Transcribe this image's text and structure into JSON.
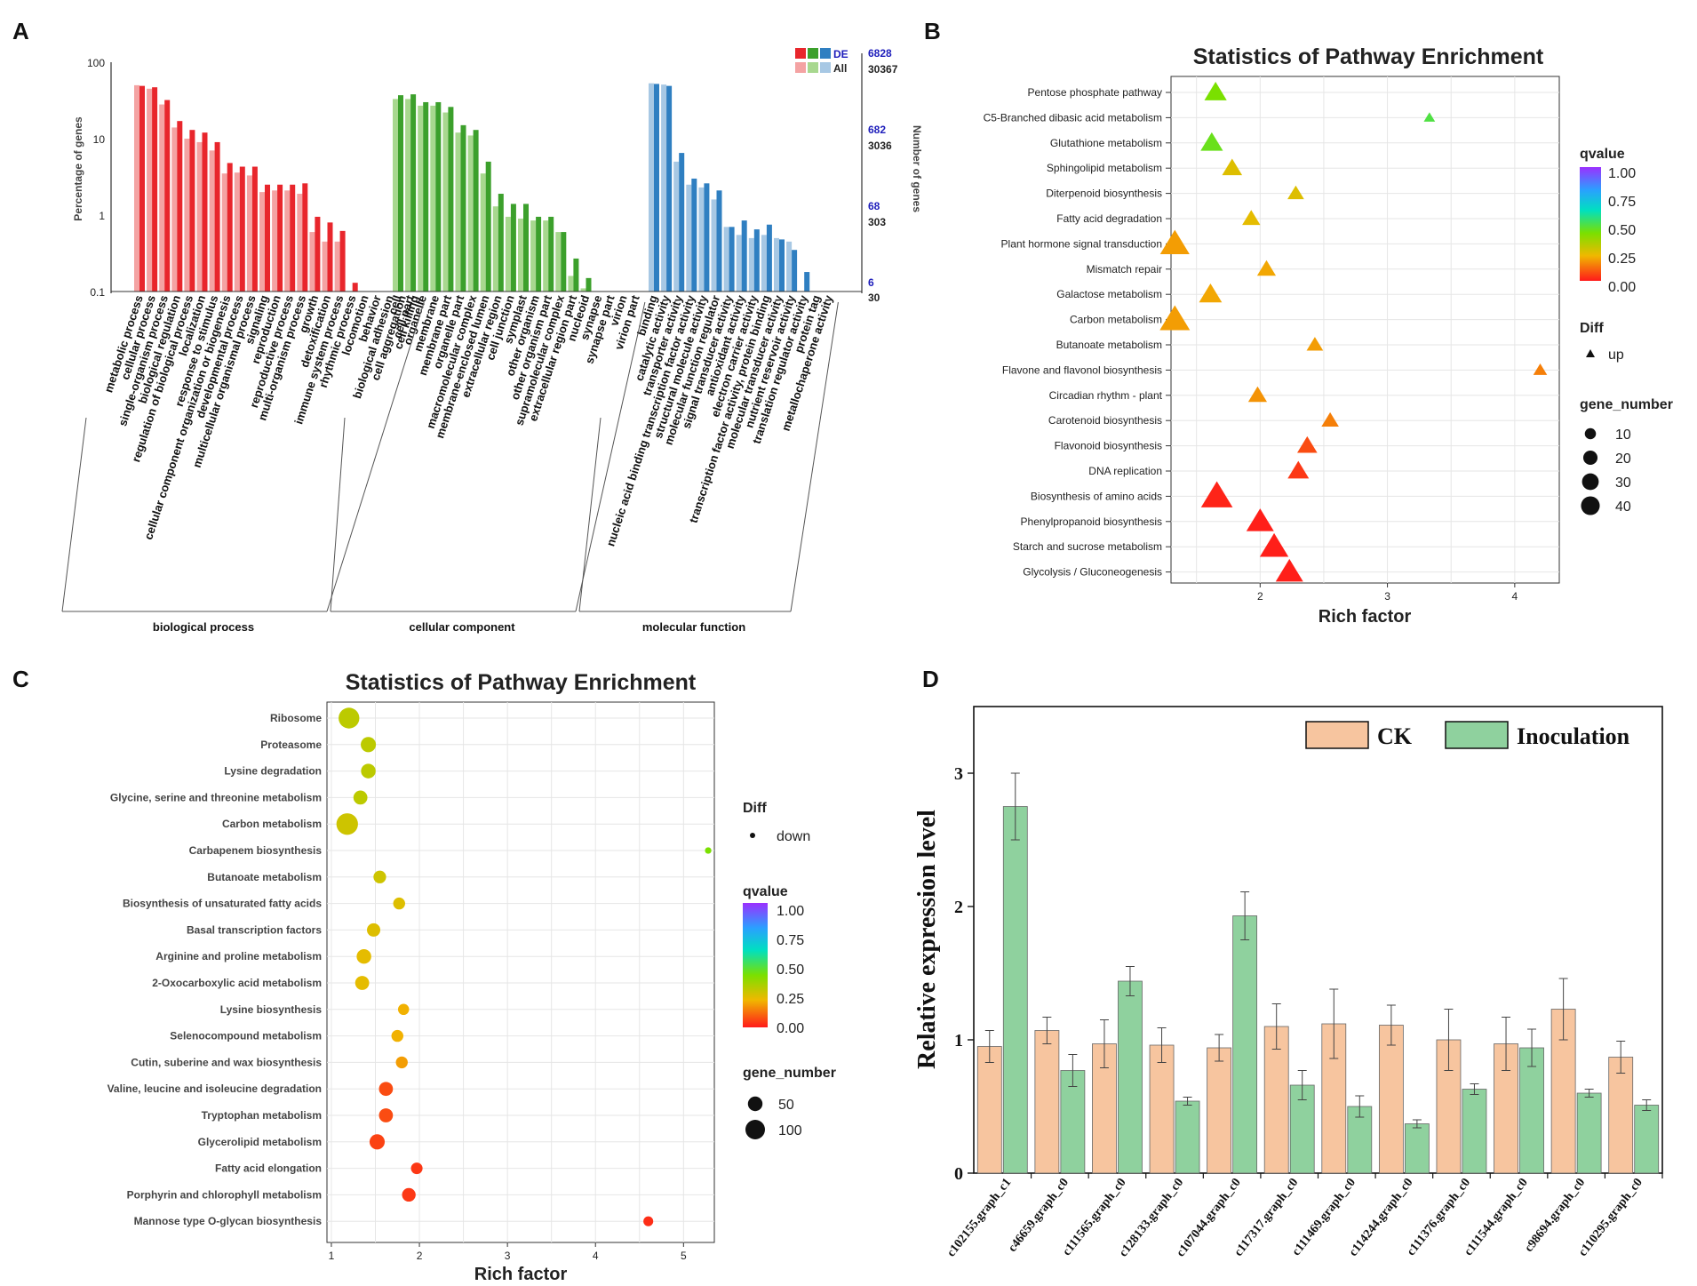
{
  "panels": {
    "a": "A",
    "b": "B",
    "c": "C",
    "d": "D"
  },
  "colors": {
    "bp": "#e8262c",
    "bp_all": "#f4a3a3",
    "cc": "#3ca02c",
    "cc_all": "#a8d88f",
    "mf": "#2f7fc1",
    "mf_all": "#a7c8e4",
    "ck": "#f7c59f",
    "inoc": "#8fd19e"
  },
  "chart_data": [
    {
      "type": "bar",
      "panel": "A",
      "ylabel": "Percentage of genes",
      "y2label": "Number of genes",
      "yscale": "log",
      "ylim": [
        0.1,
        100
      ],
      "yticks": [
        "100",
        "10",
        "1",
        "0.1"
      ],
      "right_axis": {
        "de_ticks": [
          "6828",
          "682",
          "68",
          "6"
        ],
        "all_ticks": [
          "30367",
          "3036",
          "303",
          "30"
        ]
      },
      "legend": {
        "de": "DE",
        "all": "All"
      },
      "groups": [
        {
          "name": "biological process",
          "categories": [
            "metabolic process",
            "cellular process",
            "single-organism process",
            "biological regulation",
            "regulation of biological process",
            "localization",
            "response to stimulus",
            "cellular component organization or biogenesis",
            "developmental process",
            "multicellular organismal process",
            "signaling",
            "reproduction",
            "reproductive process",
            "multi-organism process",
            "growth",
            "detoxification",
            "immune system process",
            "rhythmic process",
            "locomotion",
            "behavior",
            "biological adhesion",
            "cell aggregation",
            "cell killing"
          ],
          "all": [
            50,
            45,
            28,
            14,
            10,
            9,
            7,
            3.5,
            3.6,
            3.3,
            2.0,
            2.1,
            2.1,
            1.9,
            0.6,
            0.45,
            0.45,
            0.0,
            0.0,
            0.0,
            0.0,
            0.0,
            0.0
          ],
          "de": [
            49,
            47,
            32,
            17,
            13,
            12,
            9,
            4.8,
            4.3,
            4.3,
            2.5,
            2.5,
            2.5,
            2.6,
            0.95,
            0.8,
            0.62,
            0.13,
            0.0,
            0.0,
            0.0,
            0.0,
            0.0
          ]
        },
        {
          "name": "cellular component",
          "categories": [
            "cell",
            "cell part",
            "organelle",
            "membrane",
            "membrane part",
            "organelle part",
            "macromolecular complex",
            "membrane-enclosed lumen",
            "extracellular region",
            "cell junction",
            "symplast",
            "other organism",
            "other organism part",
            "supramolecular complex",
            "extracellular region part",
            "nucleoid",
            "synapse",
            "synapse part",
            "virion",
            "virion part"
          ],
          "all": [
            33,
            33,
            27,
            27,
            22,
            12,
            11,
            3.5,
            1.3,
            0.95,
            0.9,
            0.85,
            0.85,
            0.6,
            0.16,
            0.11,
            0.0,
            0.0,
            0.0,
            0.0
          ],
          "de": [
            37,
            38,
            30,
            30,
            26,
            15,
            13,
            5,
            1.9,
            1.4,
            1.4,
            0.95,
            0.95,
            0.6,
            0.27,
            0.15,
            0.0,
            0.0,
            0.0,
            0.0
          ]
        },
        {
          "name": "molecular function",
          "categories": [
            "binding",
            "catalytic activity",
            "transporter activity",
            "nucleic acid binding transcription factor activity",
            "structural molecule activity",
            "molecular function regulator",
            "signal transducer activity",
            "antioxidant activity",
            "electron carrier activity",
            "transcription factor activity, protein binding",
            "molecular transducer activity",
            "nutrient reservoir activity",
            "translation regulator activity",
            "protein tag",
            "metallochaperone activity"
          ],
          "all": [
            53,
            51,
            5,
            2.5,
            2.3,
            1.6,
            0.7,
            0.55,
            0.5,
            0.55,
            0.5,
            0.45,
            0.0,
            0.0,
            0.0
          ],
          "de": [
            52,
            49,
            6.5,
            3.0,
            2.6,
            2.1,
            0.7,
            0.85,
            0.65,
            0.75,
            0.48,
            0.35,
            0.18,
            0.0,
            0.0
          ]
        }
      ]
    },
    {
      "type": "scatter",
      "panel": "B",
      "title": "Statistics of Pathway Enrichment",
      "xlabel": "Rich factor",
      "xlim": [
        1.3,
        4.35
      ],
      "xticks": [
        2,
        3,
        4
      ],
      "marker": "triangle",
      "pathways": [
        "Pentose phosphate pathway",
        "C5-Branched dibasic acid metabolism",
        "Glutathione metabolism",
        "Sphingolipid metabolism",
        "Diterpenoid biosynthesis",
        "Fatty acid degradation",
        "Plant hormone signal transduction",
        "Mismatch repair",
        "Galactose metabolism",
        "Carbon metabolism",
        "Butanoate metabolism",
        "Flavone and flavonol biosynthesis",
        "Circadian rhythm - plant",
        "Carotenoid biosynthesis",
        "Flavonoid biosynthesis",
        "DNA replication",
        "Biosynthesis of amino acids",
        "Phenylpropanoid biosynthesis",
        "Starch and sucrose metabolism",
        "Glycolysis / Gluconeogenesis"
      ],
      "rich_factor": [
        1.65,
        3.33,
        1.62,
        1.78,
        2.28,
        1.93,
        1.33,
        2.05,
        1.61,
        1.33,
        2.43,
        4.2,
        1.98,
        2.55,
        2.37,
        2.3,
        1.66,
        2.0,
        2.11,
        2.23
      ],
      "gene_number": [
        16,
        2,
        16,
        12,
        7,
        9,
        32,
        10,
        17,
        34,
        7,
        4,
        10,
        8,
        12,
        14,
        38,
        27,
        30,
        27
      ],
      "qvalue": [
        0.3,
        0.35,
        0.32,
        0.18,
        0.18,
        0.17,
        0.13,
        0.14,
        0.14,
        0.13,
        0.13,
        0.1,
        0.12,
        0.1,
        0.05,
        0.03,
        0.01,
        0.005,
        0.005,
        0.005
      ],
      "legend": {
        "qvalue_title": "qvalue",
        "qvalue_ticks": [
          "1.00",
          "0.75",
          "0.50",
          "0.25",
          "0.00"
        ],
        "diff_title": "Diff",
        "diff_label": "up",
        "size_title": "gene_number",
        "size_ticks": [
          10,
          20,
          30,
          40
        ]
      }
    },
    {
      "type": "scatter",
      "panel": "C",
      "title": "Statistics of Pathway Enrichment",
      "xlabel": "Rich factor",
      "xlim": [
        0.95,
        5.35
      ],
      "xticks": [
        1,
        2,
        3,
        4,
        5
      ],
      "marker": "circle",
      "pathways": [
        "Ribosome",
        "Proteasome",
        "Lysine degradation",
        "Glycine, serine and threonine metabolism",
        "Carbon metabolism",
        "Carbapenem biosynthesis",
        "Butanoate metabolism",
        "Biosynthesis of unsaturated fatty acids",
        "Basal transcription factors",
        "Arginine and proline metabolism",
        "2-Oxocarboxylic acid metabolism",
        "Lysine biosynthesis",
        "Selenocompound metabolism",
        "Cutin, suberine and wax biosynthesis",
        "Valine, leucine and isoleucine degradation",
        "Tryptophan metabolism",
        "Glycerolipid metabolism",
        "Fatty acid elongation",
        "Porphyrin and chlorophyll metabolism",
        "Mannose type O-glycan biosynthesis"
      ],
      "rich_factor": [
        1.2,
        1.42,
        1.42,
        1.33,
        1.18,
        5.28,
        1.55,
        1.77,
        1.48,
        1.37,
        1.35,
        1.82,
        1.75,
        1.8,
        1.62,
        1.62,
        1.52,
        1.97,
        1.88,
        4.6
      ],
      "gene_number": [
        115,
        55,
        50,
        45,
        125,
        5,
        35,
        30,
        40,
        50,
        45,
        25,
        30,
        30,
        45,
        45,
        55,
        28,
        42,
        18
      ],
      "qvalue": [
        0.22,
        0.22,
        0.22,
        0.22,
        0.2,
        0.3,
        0.2,
        0.18,
        0.18,
        0.17,
        0.17,
        0.15,
        0.15,
        0.13,
        0.05,
        0.05,
        0.04,
        0.03,
        0.03,
        0.02
      ],
      "legend": {
        "diff_title": "Diff",
        "diff_label": "down",
        "qvalue_title": "qvalue",
        "qvalue_ticks": [
          "1.00",
          "0.75",
          "0.50",
          "0.25",
          "0.00"
        ],
        "size_title": "gene_number",
        "size_ticks": [
          50,
          100
        ]
      }
    },
    {
      "type": "bar",
      "panel": "D",
      "ylabel": "Relative expression level",
      "ylim": [
        0,
        3.5
      ],
      "yticks": [
        0,
        1,
        2,
        3
      ],
      "categories": [
        "c102155.graph_c1",
        "c46659.graph_c0",
        "c111565.graph_c0",
        "c128133.graph_c0",
        "c107044.graph_c0",
        "c117317.graph_c0",
        "c111469.graph_c0",
        "c114244.graph_c0",
        "c111376.graph_c0",
        "c111544.graph_c0",
        "c98694.graph_c0",
        "c110295.graph_c0"
      ],
      "series": [
        {
          "name": "CK",
          "values": [
            0.95,
            1.07,
            0.97,
            0.96,
            0.94,
            1.1,
            1.12,
            1.11,
            1.0,
            0.97,
            1.23,
            0.87
          ],
          "err": [
            0.12,
            0.1,
            0.18,
            0.13,
            0.1,
            0.17,
            0.26,
            0.15,
            0.23,
            0.2,
            0.23,
            0.12
          ]
        },
        {
          "name": "Inoculation",
          "values": [
            2.75,
            0.77,
            1.44,
            0.54,
            1.93,
            0.66,
            0.5,
            0.37,
            0.63,
            0.94,
            0.6,
            0.51
          ],
          "err": [
            0.25,
            0.12,
            0.11,
            0.03,
            0.18,
            0.11,
            0.08,
            0.03,
            0.04,
            0.14,
            0.03,
            0.04
          ]
        }
      ]
    }
  ]
}
